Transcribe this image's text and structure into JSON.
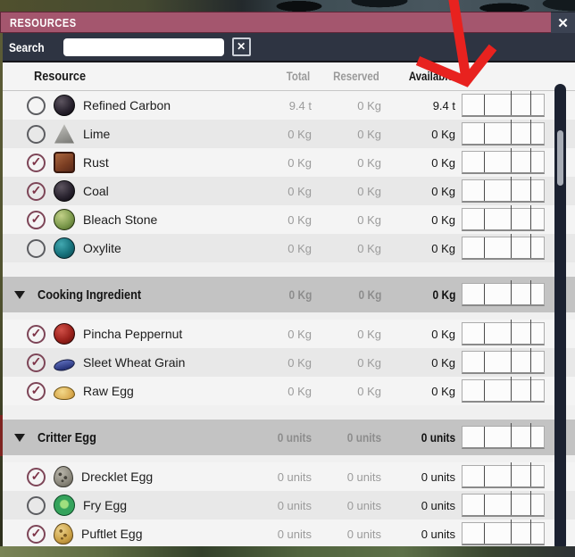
{
  "window": {
    "title": "RESOURCES",
    "close_glyph": "✕"
  },
  "search": {
    "label": "Search",
    "value": "",
    "clear_glyph": "✕"
  },
  "columns": {
    "resource": "Resource",
    "total": "Total",
    "reserved": "Reserved",
    "available": "Available"
  },
  "sections": [
    {
      "header": null,
      "rows": [
        {
          "name": "Refined Carbon",
          "icon": "refined-carbon",
          "checked": false,
          "total": "9.4 t",
          "reserved": "0 Kg",
          "available": "9.4 t"
        },
        {
          "name": "Lime",
          "icon": "lime",
          "checked": false,
          "total": "0 Kg",
          "reserved": "0 Kg",
          "available": "0 Kg"
        },
        {
          "name": "Rust",
          "icon": "rust",
          "checked": true,
          "total": "0 Kg",
          "reserved": "0 Kg",
          "available": "0 Kg"
        },
        {
          "name": "Coal",
          "icon": "coal",
          "checked": true,
          "total": "0 Kg",
          "reserved": "0 Kg",
          "available": "0 Kg"
        },
        {
          "name": "Bleach Stone",
          "icon": "bleach-stone",
          "checked": true,
          "total": "0 Kg",
          "reserved": "0 Kg",
          "available": "0 Kg"
        },
        {
          "name": "Oxylite",
          "icon": "oxylite",
          "checked": false,
          "total": "0 Kg",
          "reserved": "0 Kg",
          "available": "0 Kg"
        }
      ]
    },
    {
      "header": {
        "label": "Cooking Ingredient",
        "total": "0 Kg",
        "reserved": "0 Kg",
        "available": "0 Kg"
      },
      "rows": [
        {
          "name": "Pincha Peppernut",
          "icon": "pincha-peppernut",
          "checked": true,
          "total": "0 Kg",
          "reserved": "0 Kg",
          "available": "0 Kg"
        },
        {
          "name": "Sleet Wheat Grain",
          "icon": "sleet-wheat-grain",
          "checked": true,
          "total": "0 Kg",
          "reserved": "0 Kg",
          "available": "0 Kg"
        },
        {
          "name": "Raw Egg",
          "icon": "raw-egg",
          "checked": true,
          "total": "0 Kg",
          "reserved": "0 Kg",
          "available": "0 Kg"
        }
      ]
    },
    {
      "header": {
        "label": "Critter Egg",
        "total": "0 units",
        "reserved": "0 units",
        "available": "0 units"
      },
      "rows": [
        {
          "name": "Drecklet Egg",
          "icon": "drecklet-egg",
          "checked": true,
          "total": "0 units",
          "reserved": "0 units",
          "available": "0 units"
        },
        {
          "name": "Fry Egg",
          "icon": "fry-egg",
          "checked": false,
          "total": "0 units",
          "reserved": "0 units",
          "available": "0 units"
        },
        {
          "name": "Puftlet Egg",
          "icon": "puftlet-egg",
          "checked": true,
          "total": "0 units",
          "reserved": "0 units",
          "available": "0 units"
        }
      ]
    }
  ],
  "sparkline": {
    "lines": [
      {
        "x": 0.26,
        "tick": false
      },
      {
        "x": 0.59,
        "tick": true
      },
      {
        "x": 0.83,
        "tick": true
      }
    ]
  },
  "annotation": {
    "type": "hand-drawn-arrow",
    "color": "#e8221f",
    "points_at": "Available column"
  },
  "colors": {
    "titlebar_pink": "#a4566e",
    "panel_dark": "#2e3442",
    "list_bg": "#f0f0f0",
    "row_alt": "#e8e8e8",
    "category_header_gray": "#c3c3c3",
    "check_rose": "#7c3246",
    "scrollbar_track": "#1b2130",
    "scrollbar_thumb": "#a8adb6"
  }
}
